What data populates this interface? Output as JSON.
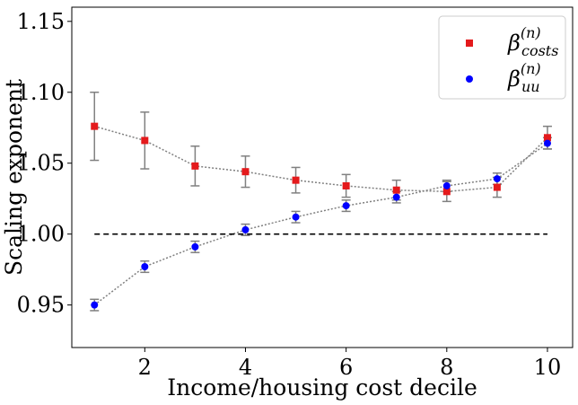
{
  "chart_data": {
    "type": "scatter",
    "xlabel": "Income/housing cost decile",
    "ylabel": "Scaling exponent",
    "xlim": [
      0.55,
      10.5
    ],
    "ylim": [
      0.92,
      1.16
    ],
    "xticks": [
      2,
      4,
      6,
      8,
      10
    ],
    "yticks": [
      0.95,
      1.0,
      1.05,
      1.1,
      1.15
    ],
    "ytick_labels": [
      "0.95",
      "1.00",
      "1.05",
      "1.10",
      "1.15"
    ],
    "x": [
      1,
      2,
      3,
      4,
      5,
      6,
      7,
      8,
      9,
      10
    ],
    "reference_line": {
      "y": 1.0,
      "x_range": [
        1,
        10
      ],
      "style": "dashed"
    },
    "series": [
      {
        "name_base": "β",
        "name_sup": "(n)",
        "name_sub": "costs",
        "color": "#e41a1c",
        "marker": "square",
        "values": [
          1.076,
          1.066,
          1.048,
          1.044,
          1.038,
          1.034,
          1.031,
          1.03,
          1.033,
          1.068
        ],
        "errors": [
          0.024,
          0.02,
          0.014,
          0.011,
          0.009,
          0.008,
          0.007,
          0.007,
          0.007,
          0.008
        ]
      },
      {
        "name_base": "β",
        "name_sup": "(n)",
        "name_sub": "uu",
        "color": "#0000ff",
        "marker": "circle",
        "values": [
          0.95,
          0.977,
          0.991,
          1.003,
          1.012,
          1.02,
          1.026,
          1.034,
          1.039,
          1.064
        ],
        "errors": [
          0.004,
          0.004,
          0.004,
          0.004,
          0.004,
          0.004,
          0.004,
          0.004,
          0.004,
          0.004
        ]
      }
    ],
    "legend_position": "top-right",
    "grid": false
  }
}
